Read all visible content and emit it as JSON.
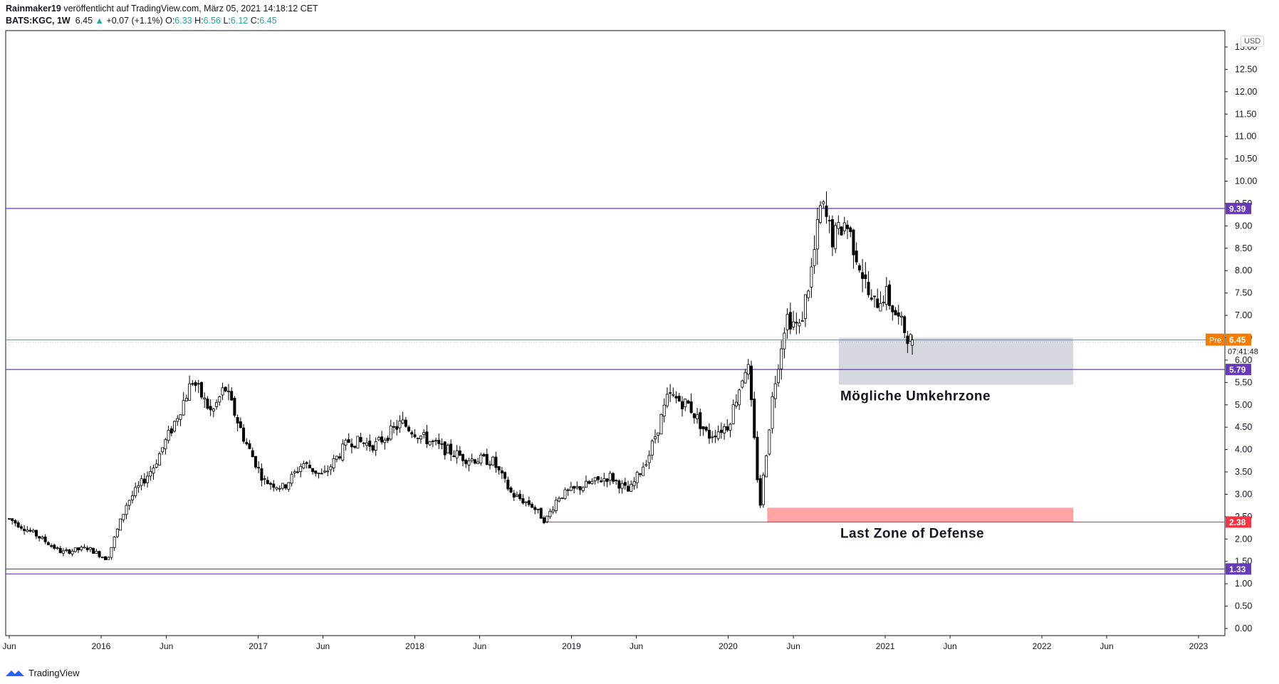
{
  "header": {
    "line1_author": "Rainmaker19",
    "line1_rest": "veröffentlicht auf TradingView.com, März 05, 2021 14:18:12 CET",
    "symbol": "BATS:KGC, 1W",
    "last": "6.45",
    "change": "+0.07 (+1.1%)",
    "o_label": "O:",
    "o_val": "6.33",
    "h_label": "H:",
    "h_val": "6.56",
    "l_label": "L:",
    "l_val": "6.12",
    "c_label": "C:",
    "c_val": "6.45"
  },
  "currency": "USD",
  "footer": {
    "brand": "TradingView"
  },
  "chart_data": {
    "type": "candlestick",
    "title": "BATS:KGC, 1W",
    "y_ticks": [
      "0.00",
      "0.50",
      "1.00",
      "1.50",
      "2.00",
      "2.50",
      "3.00",
      "3.50",
      "4.00",
      "4.50",
      "5.00",
      "5.50",
      "6.00",
      "6.50",
      "7.00",
      "7.50",
      "8.00",
      "8.50",
      "9.00",
      "9.50",
      "10.00",
      "10.50",
      "11.00",
      "11.50",
      "12.00",
      "12.50",
      "13.00"
    ],
    "ylim": [
      -0.2,
      13.2
    ],
    "x_ticks": [
      "Jun",
      "2016",
      "Jun",
      "2017",
      "Jun",
      "2018",
      "Jun",
      "2019",
      "Jun",
      "2020",
      "Jun",
      "2021",
      "Jun",
      "2022",
      "Jun",
      "2023"
    ],
    "x_tick_dates": [
      "2015-06-01",
      "2016-01-01",
      "2016-06-01",
      "2017-01-01",
      "2017-06-01",
      "2018-01-01",
      "2018-06-01",
      "2019-01-01",
      "2019-06-01",
      "2020-01-01",
      "2020-06-01",
      "2021-01-01",
      "2021-06-01",
      "2022-01-01",
      "2022-06-01",
      "2023-01-01"
    ],
    "price_path": [
      [
        "2015-06-01",
        2.45
      ],
      [
        "2015-08-01",
        2.1
      ],
      [
        "2015-10-01",
        1.7
      ],
      [
        "2015-12-01",
        1.8
      ],
      [
        "2016-01-15",
        1.55
      ],
      [
        "2016-03-01",
        2.8
      ],
      [
        "2016-05-01",
        3.6
      ],
      [
        "2016-06-15",
        4.5
      ],
      [
        "2016-08-01",
        5.55
      ],
      [
        "2016-09-15",
        4.8
      ],
      [
        "2016-10-15",
        5.4
      ],
      [
        "2016-12-01",
        4.2
      ],
      [
        "2017-01-15",
        3.3
      ],
      [
        "2017-03-01",
        3.15
      ],
      [
        "2017-04-15",
        3.7
      ],
      [
        "2017-06-01",
        3.4
      ],
      [
        "2017-08-01",
        4.2
      ],
      [
        "2017-10-01",
        4.1
      ],
      [
        "2017-12-01",
        4.6
      ],
      [
        "2018-01-15",
        4.3
      ],
      [
        "2018-03-01",
        4.05
      ],
      [
        "2018-05-01",
        3.8
      ],
      [
        "2018-07-01",
        3.75
      ],
      [
        "2018-08-15",
        3.0
      ],
      [
        "2018-10-01",
        2.75
      ],
      [
        "2018-11-01",
        2.4
      ],
      [
        "2018-12-01",
        2.95
      ],
      [
        "2019-02-01",
        3.2
      ],
      [
        "2019-04-01",
        3.4
      ],
      [
        "2019-05-15",
        3.05
      ],
      [
        "2019-07-01",
        3.9
      ],
      [
        "2019-08-15",
        5.2
      ],
      [
        "2019-10-01",
        5.0
      ],
      [
        "2019-11-15",
        4.3
      ],
      [
        "2020-01-01",
        4.55
      ],
      [
        "2020-02-15",
        6.0
      ],
      [
        "2020-03-15",
        2.7
      ],
      [
        "2020-04-15",
        5.3
      ],
      [
        "2020-05-15",
        7.0
      ],
      [
        "2020-06-15",
        6.7
      ],
      [
        "2020-07-15",
        8.1
      ],
      [
        "2020-08-05",
        9.5
      ],
      [
        "2020-09-01",
        8.7
      ],
      [
        "2020-10-01",
        9.1
      ],
      [
        "2020-11-01",
        8.2
      ],
      [
        "2020-12-01",
        7.2
      ],
      [
        "2021-01-01",
        7.5
      ],
      [
        "2021-02-01",
        6.9
      ],
      [
        "2021-03-01",
        6.45
      ]
    ],
    "ohlc_last": {
      "open": 6.33,
      "high": 6.56,
      "low": 6.12,
      "close": 6.45
    },
    "price_lines": [
      {
        "value": 9.39,
        "label": "9.39",
        "color": "#673ab7"
      },
      {
        "value": 5.79,
        "label": "5.79",
        "color": "#673ab7"
      },
      {
        "value": 1.33,
        "label": "1.33",
        "color": "#673ab7"
      },
      {
        "value": 1.22,
        "label": "",
        "color": "#673ab7"
      }
    ],
    "current_price": {
      "value": 6.45,
      "label": "6.45",
      "tag": "Pre",
      "countdown": "07:41:48",
      "color": "#f57c00",
      "line_color": "#2196f3"
    },
    "support_line": {
      "value": 2.38,
      "label": "2.38",
      "from": "2018-11-01",
      "color": "#f23645"
    },
    "zones": [
      {
        "label": "Mögliche Umkehrzone",
        "from": "2020-09-15",
        "to": "2022-03-15",
        "low": 5.45,
        "high": 6.5,
        "color": "#d1d4dc"
      },
      {
        "label": "Last Zone of Defense",
        "from": "2020-04-01",
        "to": "2022-03-15",
        "low": 2.38,
        "high": 2.7,
        "color": "#ff9999"
      }
    ],
    "colors": {
      "up": "#ffffff",
      "down": "#000000",
      "outline": "#000000",
      "axis_text": "#131722"
    }
  }
}
